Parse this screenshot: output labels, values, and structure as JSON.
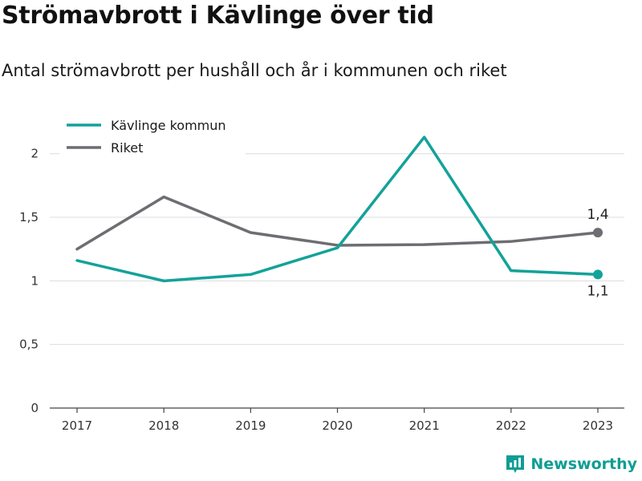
{
  "header": {
    "title": "Strömavbrott i Kävlinge över tid",
    "subtitle": "Antal strömavbrott per hushåll och år i kommunen och riket"
  },
  "brand": {
    "name": "Newsworthy",
    "icon": "newsworthy-logo-icon",
    "color": "#0f9d94"
  },
  "chart_data": {
    "type": "line",
    "title": "Strömavbrott i Kävlinge över tid",
    "subtitle": "Antal strömavbrott per hushåll och år i kommunen och riket",
    "xlabel": "",
    "ylabel": "",
    "x": [
      "2017",
      "2018",
      "2019",
      "2020",
      "2021",
      "2022",
      "2023"
    ],
    "ylim": [
      0,
      2.2
    ],
    "yticks": [
      {
        "value": 0,
        "label": "0"
      },
      {
        "value": 0.5,
        "label": "0,5"
      },
      {
        "value": 1,
        "label": "1"
      },
      {
        "value": 1.5,
        "label": "1,5"
      },
      {
        "value": 2,
        "label": "2"
      }
    ],
    "grid": true,
    "legend_position": "top-left",
    "series": [
      {
        "name": "Kävlinge kommun",
        "color": "#13a299",
        "values": [
          1.16,
          1.0,
          1.05,
          1.26,
          2.13,
          1.08,
          1.05
        ],
        "end_label": "1,1",
        "end_label_side": "below"
      },
      {
        "name": "Riket",
        "color": "#6d6d72",
        "values": [
          1.25,
          1.66,
          1.38,
          1.28,
          1.285,
          1.31,
          1.38
        ],
        "end_label": "1,4",
        "end_label_side": "above"
      }
    ]
  }
}
